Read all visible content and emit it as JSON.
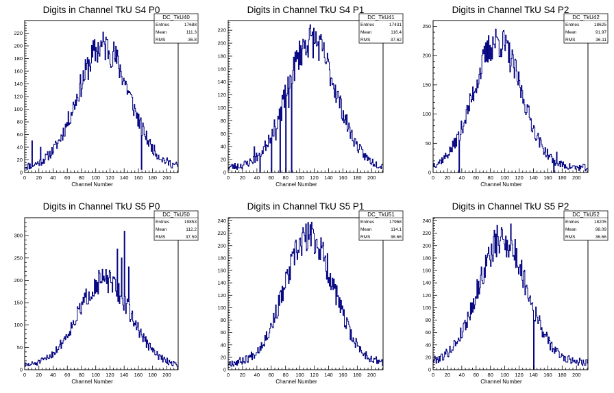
{
  "colors": {
    "histogram": "#000080",
    "axes": "#000000",
    "background": "#ffffff"
  },
  "chart_data": [
    {
      "type": "histogram",
      "title": "Digits in Channel TkU S4 P0",
      "xlabel": "Channel Number",
      "ylabel": "",
      "xlim": [
        0,
        216
      ],
      "ylim": [
        0,
        240
      ],
      "xticks": [
        "0",
        "20",
        "40",
        "60",
        "80",
        "100",
        "120",
        "140",
        "160",
        "180",
        "200"
      ],
      "yticks": [
        "0",
        "20",
        "40",
        "60",
        "80",
        "100",
        "120",
        "140",
        "160",
        "180",
        "200",
        "220"
      ],
      "ytick_values": [
        0,
        20,
        40,
        60,
        80,
        100,
        120,
        140,
        160,
        180,
        200,
        220
      ],
      "stats": {
        "name": "DC_TkU40",
        "rows": [
          {
            "label": "Entries",
            "value": "17688"
          },
          {
            "label": "Mean",
            "value": "111.3"
          },
          {
            "label": "RMS",
            "value": "36.8"
          }
        ]
      },
      "shape": {
        "mean": 111,
        "sigma": 36,
        "peak": 200,
        "base": 8,
        "seed": 11
      },
      "spikes": [
        {
          "x": 10,
          "y": 50
        },
        {
          "x": 22,
          "y": 40
        },
        {
          "x": 164,
          "y": 5
        },
        {
          "x": 168,
          "y": 60
        }
      ]
    },
    {
      "type": "histogram",
      "title": "Digits in Channel TkU S4 P1",
      "xlabel": "Channel Number",
      "ylabel": "",
      "xlim": [
        0,
        216
      ],
      "ylim": [
        0,
        235
      ],
      "xticks": [
        "0",
        "20",
        "40",
        "60",
        "80",
        "100",
        "120",
        "140",
        "160",
        "180",
        "200"
      ],
      "yticks": [
        "0",
        "20",
        "40",
        "60",
        "80",
        "100",
        "120",
        "140",
        "160",
        "180",
        "200",
        "220"
      ],
      "ytick_values": [
        0,
        20,
        40,
        60,
        80,
        100,
        120,
        140,
        160,
        180,
        200,
        220
      ],
      "stats": {
        "name": "DC_TkU41",
        "rows": [
          {
            "label": "Entries",
            "value": "17431"
          },
          {
            "label": "Mean",
            "value": "116.4"
          },
          {
            "label": "RMS",
            "value": "37.62"
          }
        ]
      },
      "shape": {
        "mean": 116,
        "sigma": 34,
        "peak": 205,
        "base": 8,
        "seed": 23
      },
      "spikes": [
        {
          "x": 36,
          "y": 40
        },
        {
          "x": 44,
          "y": 0
        },
        {
          "x": 56,
          "y": 58
        },
        {
          "x": 60,
          "y": 0
        },
        {
          "x": 66,
          "y": 50
        },
        {
          "x": 72,
          "y": 0
        },
        {
          "x": 74,
          "y": 80
        },
        {
          "x": 80,
          "y": 0
        },
        {
          "x": 84,
          "y": 100
        },
        {
          "x": 88,
          "y": 0
        }
      ]
    },
    {
      "type": "histogram",
      "title": "Digits in Channel TkU S4 P2",
      "xlabel": "Channel Number",
      "ylabel": "",
      "xlim": [
        0,
        216
      ],
      "ylim": [
        0,
        260
      ],
      "xticks": [
        "0",
        "20",
        "40",
        "60",
        "80",
        "100",
        "120",
        "140",
        "160",
        "180",
        "200"
      ],
      "yticks": [
        "0",
        "50",
        "100",
        "150",
        "200",
        "250"
      ],
      "ytick_values": [
        0,
        50,
        100,
        150,
        200,
        250
      ],
      "stats": {
        "name": "DC_TkU42",
        "rows": [
          {
            "label": "Entries",
            "value": "18625"
          },
          {
            "label": "Mean",
            "value": "91.97"
          },
          {
            "label": "RMS",
            "value": "36.11"
          }
        ]
      },
      "shape": {
        "mean": 90,
        "sigma": 33,
        "peak": 225,
        "base": 8,
        "seed": 37
      },
      "spikes": [
        {
          "x": 36,
          "y": 0
        },
        {
          "x": 37,
          "y": 55
        },
        {
          "x": 168,
          "y": 0
        },
        {
          "x": 172,
          "y": 35
        }
      ]
    },
    {
      "type": "histogram",
      "title": "Digits in Channel TkU S5 P0",
      "xlabel": "Channel Number",
      "ylabel": "",
      "xlim": [
        0,
        216
      ],
      "ylim": [
        0,
        340
      ],
      "xticks": [
        "0",
        "20",
        "40",
        "60",
        "80",
        "100",
        "120",
        "140",
        "160",
        "180",
        "200"
      ],
      "yticks": [
        "0",
        "50",
        "100",
        "150",
        "200",
        "250",
        "300"
      ],
      "ytick_values": [
        0,
        50,
        100,
        150,
        200,
        250,
        300
      ],
      "stats": {
        "name": "DC_TkU50",
        "rows": [
          {
            "label": "Entries",
            "value": "19853"
          },
          {
            "label": "Mean",
            "value": "112.2"
          },
          {
            "label": "RMS",
            "value": "37.59"
          }
        ]
      },
      "shape": {
        "mean": 112,
        "sigma": 37,
        "peak": 200,
        "base": 8,
        "seed": 51
      },
      "spikes": [
        {
          "x": 130,
          "y": 270
        },
        {
          "x": 136,
          "y": 250
        },
        {
          "x": 140,
          "y": 310
        },
        {
          "x": 146,
          "y": 230
        }
      ]
    },
    {
      "type": "histogram",
      "title": "Digits in Channel TkU S5 P1",
      "xlabel": "Channel Number",
      "ylabel": "",
      "xlim": [
        0,
        216
      ],
      "ylim": [
        0,
        245
      ],
      "xticks": [
        "0",
        "20",
        "40",
        "60",
        "80",
        "100",
        "120",
        "140",
        "160",
        "180",
        "200"
      ],
      "yticks": [
        "0",
        "20",
        "40",
        "60",
        "80",
        "100",
        "120",
        "140",
        "160",
        "180",
        "200",
        "220",
        "240"
      ],
      "ytick_values": [
        0,
        20,
        40,
        60,
        80,
        100,
        120,
        140,
        160,
        180,
        200,
        220,
        240
      ],
      "stats": {
        "name": "DC_TkU51",
        "rows": [
          {
            "label": "Entries",
            "value": "17968"
          },
          {
            "label": "Mean",
            "value": "114.1"
          },
          {
            "label": "RMS",
            "value": "36.66"
          }
        ]
      },
      "shape": {
        "mean": 113,
        "sigma": 34,
        "peak": 215,
        "base": 10,
        "seed": 67
      },
      "spikes": [
        {
          "x": 108,
          "y": 235
        }
      ]
    },
    {
      "type": "histogram",
      "title": "Digits in Channel TkU S5 P2",
      "xlabel": "Channel Number",
      "ylabel": "",
      "xlim": [
        0,
        216
      ],
      "ylim": [
        0,
        245
      ],
      "xticks": [
        "0",
        "20",
        "40",
        "60",
        "80",
        "100",
        "120",
        "140",
        "160",
        "180",
        "200"
      ],
      "yticks": [
        "0",
        "20",
        "40",
        "60",
        "80",
        "100",
        "120",
        "140",
        "160",
        "180",
        "200",
        "220",
        "240"
      ],
      "ytick_values": [
        0,
        20,
        40,
        60,
        80,
        100,
        120,
        140,
        160,
        180,
        200,
        220,
        240
      ],
      "stats": {
        "name": "DC_TkU52",
        "rows": [
          {
            "label": "Entries",
            "value": "18205"
          },
          {
            "label": "Mean",
            "value": "98.09"
          },
          {
            "label": "RMS",
            "value": "36.66"
          }
        ]
      },
      "shape": {
        "mean": 97,
        "sigma": 34,
        "peak": 210,
        "base": 12,
        "seed": 79
      },
      "spikes": [
        {
          "x": 108,
          "y": 235
        },
        {
          "x": 140,
          "y": 0
        },
        {
          "x": 141,
          "y": 80
        }
      ]
    }
  ]
}
